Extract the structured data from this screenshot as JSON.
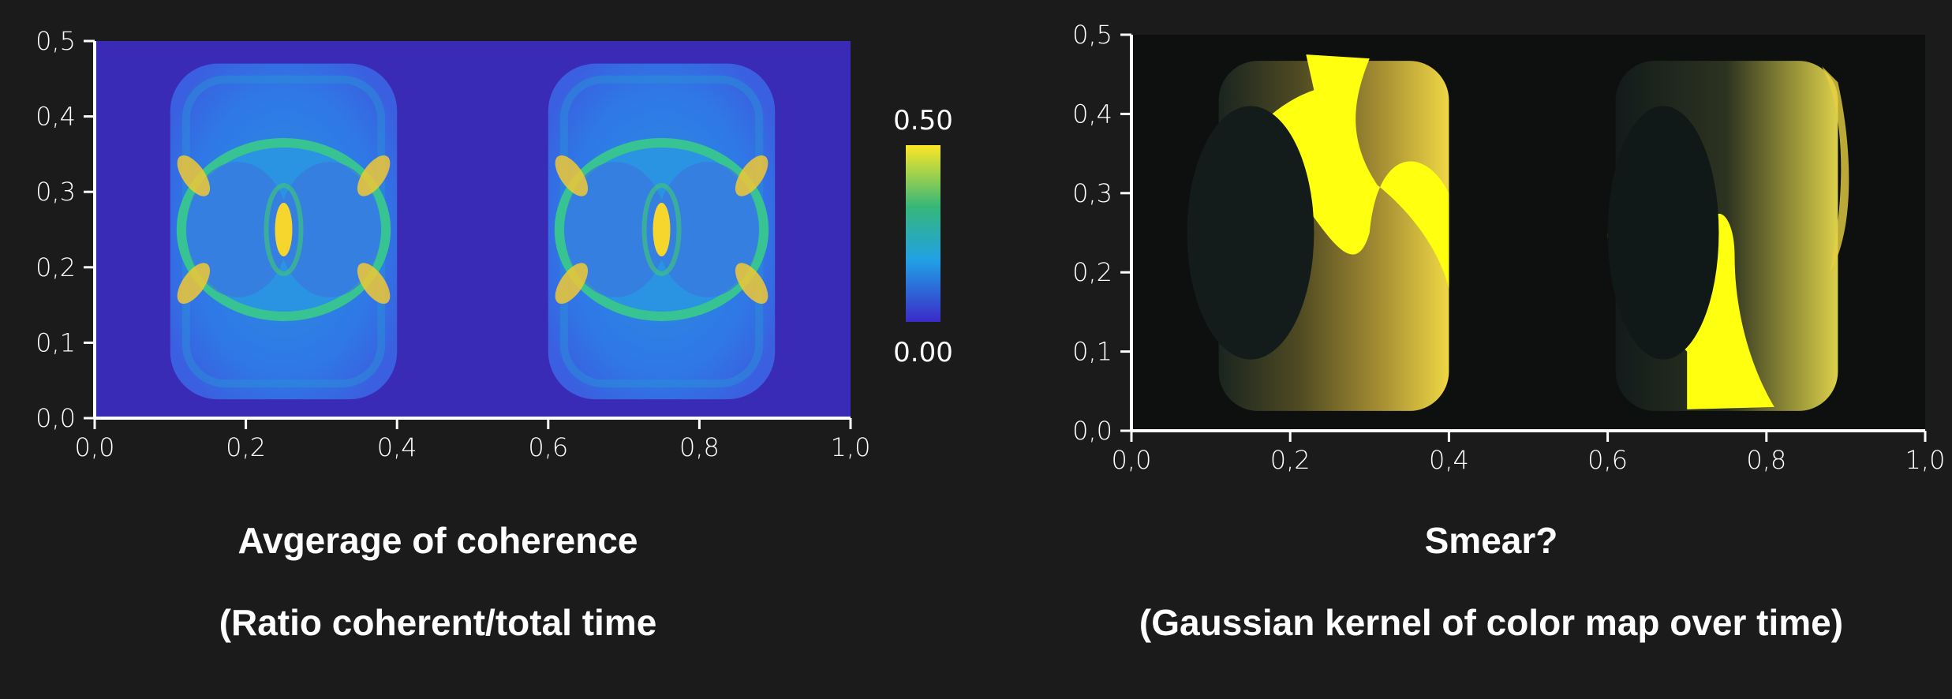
{
  "chart_data": [
    {
      "type": "heatmap",
      "title": "Avgerage of coherence",
      "subtitle": "(Ratio coherent/total time",
      "xlim": [
        0.0,
        1.0
      ],
      "ylim": [
        0.0,
        0.5
      ],
      "x_ticks": [
        "0,0",
        "0,2",
        "0,4",
        "0,6",
        "0,8",
        "1,0"
      ],
      "y_ticks": [
        "0,0",
        "0,1",
        "0,2",
        "0,3",
        "0,4",
        "0,5"
      ],
      "colorbar": {
        "min_label": "0.00",
        "max_label": "0.50",
        "min": 0.0,
        "max": 0.5,
        "colors": [
          "#fde725",
          "#35b779",
          "#21a1e5",
          "#3b2bc8"
        ]
      },
      "background_color": "#3a2bb6",
      "blobs": [
        {
          "x_range": [
            0.1,
            0.4
          ],
          "y_range": [
            0.025,
            0.47
          ],
          "center": [
            0.25,
            0.25
          ]
        },
        {
          "x_range": [
            0.6,
            0.9
          ],
          "y_range": [
            0.025,
            0.47
          ],
          "center": [
            0.75,
            0.25
          ]
        }
      ]
    },
    {
      "type": "heatmap",
      "title": "Smear?",
      "subtitle": "(Gaussian kernel of color map over time)",
      "xlim": [
        0.0,
        1.0
      ],
      "ylim": [
        0.0,
        0.5
      ],
      "x_ticks": [
        "0,0",
        "0,2",
        "0,4",
        "0,6",
        "0,8",
        "1,0"
      ],
      "y_ticks": [
        "0,0",
        "0,1",
        "0,2",
        "0,3",
        "0,4",
        "0,5"
      ],
      "background_color": "#0e0f0f",
      "highlight_color": "#ffff10",
      "blobs": [
        {
          "x_range": [
            0.1,
            0.4
          ],
          "y_range": [
            0.025,
            0.475
          ],
          "hole_center": [
            0.15,
            0.25
          ]
        },
        {
          "x_range": [
            0.6,
            0.9
          ],
          "y_range": [
            0.025,
            0.475
          ],
          "hole_center": [
            0.67,
            0.25
          ]
        }
      ]
    }
  ]
}
